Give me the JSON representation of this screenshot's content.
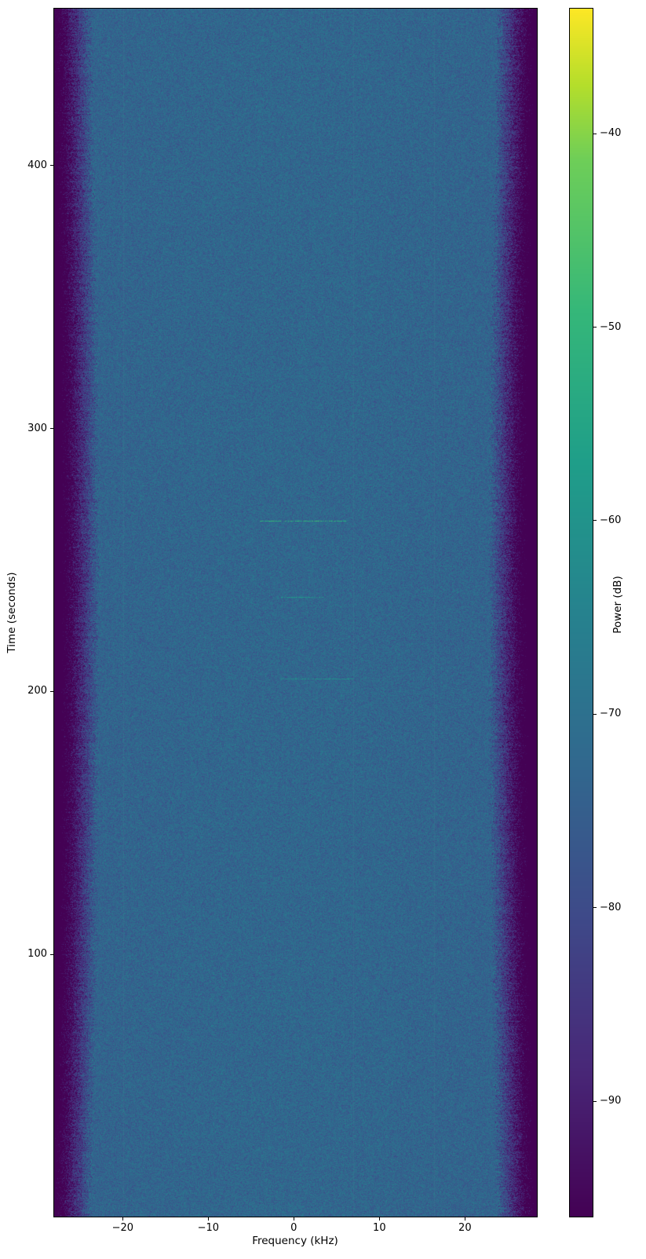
{
  "chart_data": {
    "type": "heatmap",
    "subtype": "spectrogram-waterfall",
    "title": "",
    "xlabel": "Frequency (kHz)",
    "ylabel": "Time (seconds)",
    "colorbar_label": "Power (dB)",
    "xlim": [
      -28.1,
      28.5
    ],
    "ylim": [
      0,
      460
    ],
    "clim_db": [
      -96,
      -33.5
    ],
    "x_ticks": [
      -20,
      -10,
      0,
      10,
      20
    ],
    "x_tick_labels": [
      "−20",
      "−10",
      "0",
      "10",
      "20"
    ],
    "y_ticks": [
      100,
      200,
      300,
      400
    ],
    "y_tick_labels": [
      "100",
      "200",
      "300",
      "400"
    ],
    "colorbar_ticks": [
      -40,
      -50,
      -60,
      -70,
      -80,
      -90
    ],
    "colorbar_tick_labels": [
      "−40",
      "−50",
      "−60",
      "−70",
      "−80",
      "−90"
    ],
    "grid": false,
    "legend": false,
    "colormap": "viridis",
    "colormap_stops": [
      [
        0.0,
        "#440154"
      ],
      [
        0.125,
        "#482878"
      ],
      [
        0.25,
        "#3e4a89"
      ],
      [
        0.375,
        "#31688e"
      ],
      [
        0.5,
        "#26828e"
      ],
      [
        0.625,
        "#1f9e89"
      ],
      [
        0.75,
        "#35b779"
      ],
      [
        0.875,
        "#6ece58"
      ],
      [
        0.9375,
        "#b5de2b"
      ],
      [
        1.0,
        "#fde725"
      ]
    ],
    "passband_level_db": -74,
    "noise_floor_db": -96,
    "passband_edge_khz": 23.8,
    "rolloff_db_per_khz": 7,
    "noise_sigma_db": 3,
    "events": [
      {
        "time_s": 265,
        "freq_start_khz": -4.0,
        "freq_end_khz": 6.0,
        "power_db": -52
      },
      {
        "time_s": 236,
        "freq_start_khz": -1.5,
        "freq_end_khz": 3.5,
        "power_db": -60
      },
      {
        "time_s": 205,
        "freq_start_khz": -1.5,
        "freq_end_khz": 7.0,
        "power_db": -62
      }
    ],
    "vertical_artifacts_khz": [
      -20.0,
      7.0,
      16.4
    ]
  }
}
